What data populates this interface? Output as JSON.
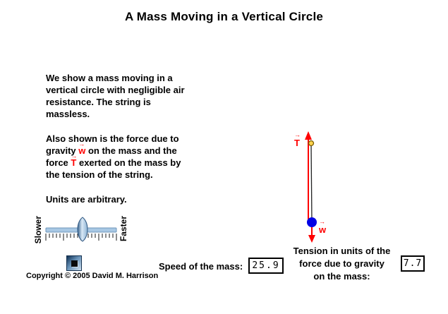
{
  "title": "A Mass Moving in a Vertical Circle",
  "description": {
    "para1_lines": [
      "We show a mass moving in a",
      "vertical circle with negligible air",
      "resistance. The string is",
      "massless."
    ],
    "para2": {
      "line1": "Also shown is the force due to",
      "line2_pre": "gravity ",
      "w_symbol": "w",
      "line2_post": " on the mass and the",
      "line3_pre": "force ",
      "t_symbol": "T",
      "line3_post": " exerted on the mass by",
      "line4": "the tension of the string."
    },
    "para3": "Units are arbitrary."
  },
  "speed_control": {
    "slow_label": "Slower",
    "fast_label": "Faster"
  },
  "copyright": "Copyright © 2005 David M. Harrison",
  "speed_readout": {
    "label": "Speed of the mass:",
    "value": "25.9"
  },
  "tension_readout": {
    "label_lines": [
      "Tension in units of the",
      "force due to gravity",
      "on the mass:"
    ],
    "value": "7.7"
  },
  "simulation": {
    "tension_vector_label": "T",
    "weight_vector_label": "w"
  },
  "colors": {
    "vector_red": "#ff0000",
    "mass_blue": "#0000e6",
    "pivot_yellow": "#ffd34d",
    "string_black": "#222222",
    "slider_track": "#a8c8e4",
    "slider_track_edge": "#6f96ba"
  }
}
